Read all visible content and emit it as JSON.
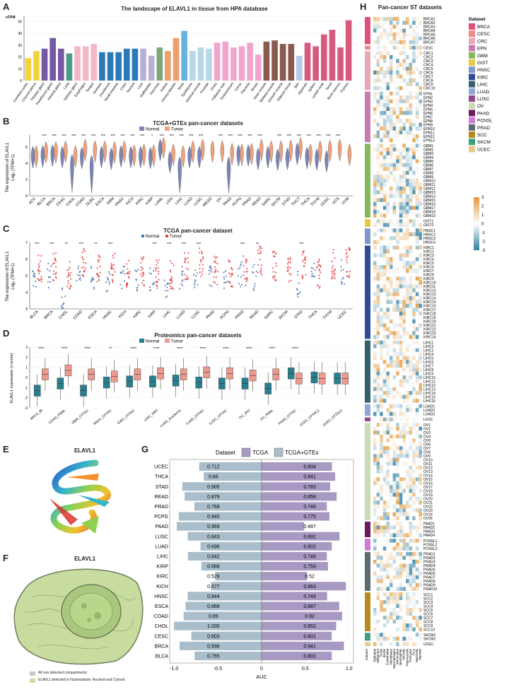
{
  "colors": {
    "normal_blue": "#7b85b8",
    "tumor_orange": "#f0a27c",
    "tcga_normal": "#3f6fb5",
    "tcga_tumor": "#e23b3b",
    "prot_normal": "#2a7f8f",
    "prot_tumor": "#ec9a8e",
    "auc_tcga": "#a899c2",
    "auc_gtex": "#a9bdca",
    "heat_pos": "#e39a3b",
    "heat_neg": "#2f7fa0"
  },
  "panel_labels": {
    "A": "A",
    "B": "B",
    "C": "C",
    "D": "D",
    "E": "E",
    "F": "F",
    "G": "G",
    "H": "H"
  },
  "panelA": {
    "title": "The landscape of ELAVL1 in tissue from HPA database",
    "ylabel": "nTPM",
    "yticks": [
      "0",
      "10",
      "20",
      "30",
      "40",
      "50"
    ]
  },
  "panelB": {
    "title": "TCGA+GTEx pan-cancer datasets",
    "legend_normal": "Normal",
    "legend_tumor": "Tumor",
    "ylabel_1": "The expression of ELAVL1",
    "ylabel_2": "Log₂ (TPM+1)",
    "yticks": [
      "0",
      "2",
      "4",
      "6"
    ]
  },
  "panelC": {
    "title": "TCGA pan-cancer dataset",
    "legend_normal": "Normal",
    "legend_tumor": "Tumor",
    "ylabel_1": "The expression of ELAVL1",
    "ylabel_2": "Log₂ (TPM+1)",
    "yticks": [
      "3",
      "4",
      "5",
      "6",
      "7"
    ]
  },
  "panelD": {
    "title": "Proteomics pan-cancer datasets",
    "legend_normal": "Normal",
    "legend_tumor": "Tumor",
    "ylabel": "ELAVL1 expression (z-score)",
    "yticks": [
      "-3",
      "-2",
      "-1",
      "0",
      "1",
      "2",
      "3"
    ]
  },
  "panelE": {
    "title": "ELAVL1"
  },
  "panelF": {
    "title": "ELAVL1",
    "legend_1": "All non detected compartments",
    "legend_2": "ELAVL1 detected in Nucleoplasm, Nucleoli and Cytosol"
  },
  "panelG": {
    "legend_title": "Dataset",
    "legend_tcga": "TCGA",
    "legend_gtex": "TCGA+GTEx",
    "xlabel": "AUC",
    "xticks": [
      "-1.0",
      "-0.5",
      "0",
      "0.5",
      "1.0"
    ]
  },
  "panelH": {
    "title": "Pan-cancer ST datasets",
    "legend_title": "Dataset",
    "datasets": [
      "BRCA",
      "CESC",
      "CRC",
      "EPN",
      "GBM",
      "GIST",
      "HNSC",
      "KIRC",
      "LIHC",
      "LUAD",
      "LUSC",
      "OV",
      "PAAD",
      "PCNSL",
      "PRAD",
      "SCC",
      "SKCM",
      "UCEC"
    ],
    "dataset_colors": [
      "#e0507a",
      "#f08a8a",
      "#e7a8b5",
      "#c77bb0",
      "#86b95a",
      "#e8c840",
      "#7e98c9",
      "#2e4d96",
      "#35606e",
      "#93a6d9",
      "#8f4a8d",
      "#c9dcb3",
      "#6b1a5b",
      "#cc7bd6",
      "#5c6b72",
      "#b58b1e",
      "#3aa07d",
      "#e8c98a"
    ],
    "scale_ticks": [
      "3",
      "2",
      "1",
      "0",
      "-1",
      "-2",
      "-3"
    ],
    "x_labels": [
      "Dataset",
      "Epithelial",
      "Malignant",
      "Tcells",
      "Bcells",
      "Endothelial",
      "Fibroblasts",
      "Macrophages",
      "Monocytes",
      "Neutrophils",
      "NKcells",
      "Plasmacells",
      "Pericytes",
      "DCs",
      "Mastcells",
      "Myeloid"
    ]
  },
  "chart_data": [
    {
      "id": "A",
      "type": "bar",
      "title": "The landscape of ELAVL1 in tissue from HPA database",
      "ylabel": "nTPM",
      "ylim": [
        0,
        55
      ],
      "categories": [
        "Cerebral cortex",
        "Choroid plexus",
        "Pituitary gland",
        "Parathyroid gland",
        "Adrenal gland",
        "Lung",
        "Salivary gland",
        "Esophagus",
        "Tongue",
        "Stomach",
        "Duodenum",
        "Small intestine",
        "Colon",
        "Rectum",
        "Liver",
        "Gallbladder",
        "Pancreas",
        "Kidney",
        "Urinary bladder",
        "Testis",
        "Epididymis",
        "Seminal vesicle",
        "Prostate",
        "Ovary",
        "Fallopian tube",
        "Endometrium",
        "Cervix",
        "Placenta",
        "Breast",
        "Heart muscle",
        "Skeletal muscle",
        "Smooth muscle",
        "Adipose tissue",
        "Skin",
        "Appendix",
        "Spleen",
        "Lymph node",
        "Tonsil",
        "Bone marrow",
        "Thymus"
      ],
      "values": [
        19,
        25,
        27,
        36,
        27,
        23,
        29,
        29,
        31,
        24,
        24,
        24,
        27,
        27,
        27,
        21,
        28,
        25,
        36,
        42,
        25,
        28,
        27,
        32,
        33,
        28,
        29,
        32,
        22,
        33,
        34,
        31,
        31,
        21,
        32,
        29,
        39,
        43,
        28,
        51
      ],
      "bar_colors": [
        "#f3d33b",
        "#f3d33b",
        "#7658a3",
        "#7658a3",
        "#7658a3",
        "#4f9a8c",
        "#f2b8c8",
        "#f2b8c8",
        "#f2b8c8",
        "#2c79b8",
        "#2c79b8",
        "#2c79b8",
        "#2c79b8",
        "#2c79b8",
        "#b7b0d6",
        "#b7b0d6",
        "#7ca77d",
        "#eca06c",
        "#eca06c",
        "#67b3de",
        "#b6d8e8",
        "#b6d8e8",
        "#b6d8e8",
        "#f1a5cc",
        "#f1a5cc",
        "#f1a5cc",
        "#f1a5cc",
        "#f1a5cc",
        "#f1a5cc",
        "#8b5a4e",
        "#8b5a4e",
        "#8b5a4e",
        "#8b5a4e",
        "#b9c9ea",
        "#d55a7d",
        "#d55a7d",
        "#d55a7d",
        "#d55a7d",
        "#d55a7d",
        "#d55a7d"
      ]
    },
    {
      "id": "B",
      "type": "violin",
      "title": "TCGA+GTEx pan-cancer datasets",
      "ylim": [
        0,
        7.5
      ],
      "categories": [
        "ACC",
        "BLCA",
        "BRCA",
        "CESC",
        "CHOL",
        "COAD",
        "DLBC",
        "ESCA",
        "GBM",
        "HNSC",
        "KICH",
        "KIRC",
        "KIRP",
        "LAML",
        "LGG",
        "LIHC",
        "LUAD",
        "LUSC",
        "MESO",
        "OV",
        "PAAD",
        "PCPG",
        "PRAD",
        "READ",
        "SARC",
        "SKCM",
        "STAD",
        "TGCT",
        "THCA",
        "THYM",
        "UCEC",
        "UCS",
        "UVM"
      ],
      "series": [
        {
          "name": "Normal",
          "values": [
            4.9,
            5.0,
            5.1,
            4.9,
            3.9,
            4.8,
            3.8,
            4.9,
            4.7,
            5.0,
            4.9,
            4.9,
            4.8,
            5.8,
            4.3,
            3.6,
            4.9,
            4.9,
            null,
            null,
            3.6,
            5.1,
            5.1,
            4.7,
            4.9,
            4.6,
            4.7,
            5.3,
            4.8,
            4.6,
            4.4,
            null,
            null
          ]
        },
        {
          "name": "Tumor",
          "values": [
            5.0,
            5.5,
            5.5,
            5.6,
            5.0,
            5.8,
            5.6,
            5.6,
            5.5,
            5.6,
            5.1,
            5.2,
            5.1,
            6.1,
            5.2,
            5.0,
            5.6,
            5.8,
            5.6,
            5.6,
            5.3,
            5.2,
            5.3,
            5.8,
            5.6,
            5.6,
            5.7,
            6.0,
            5.2,
            5.6,
            5.7,
            5.8,
            5.2
          ]
        }
      ],
      "significance": [
        "",
        "***",
        "***",
        "***",
        "***",
        "***",
        "***",
        "***",
        "***",
        "***",
        "***",
        "***",
        "*",
        "***",
        "***",
        "***",
        "***",
        "***",
        "",
        "***",
        "***",
        "***",
        "***",
        "***",
        "",
        "***",
        "***",
        "***",
        "***",
        "***",
        "***",
        "***",
        ""
      ]
    },
    {
      "id": "C",
      "type": "scatter",
      "title": "TCGA pan-cancer dataset",
      "ylim": [
        3,
        7
      ],
      "categories": [
        "BLCA",
        "BRCA",
        "CHOL",
        "COAD",
        "ESCA",
        "HNSC",
        "KICH",
        "KIRC",
        "KIRP",
        "LIHC",
        "LUAD",
        "LUSC",
        "PAAD",
        "PCPG",
        "PRAD",
        "READ",
        "SARC",
        "SKCM",
        "STAD",
        "THCA",
        "THYM",
        "UCEC"
      ],
      "series": [
        {
          "name": "Normal",
          "values": [
            5.0,
            5.0,
            3.7,
            4.8,
            4.9,
            4.7,
            5.0,
            4.9,
            4.9,
            4.0,
            4.9,
            4.9,
            5.0,
            5.0,
            5.1,
            4.9,
            null,
            null,
            4.5,
            5.0,
            null,
            5.2
          ]
        },
        {
          "name": "Tumor",
          "values": [
            5.4,
            5.6,
            5.1,
            5.8,
            5.4,
            5.5,
            5.2,
            5.3,
            5.1,
            5.0,
            5.5,
            5.8,
            5.3,
            5.1,
            5.3,
            5.9,
            5.6,
            5.3,
            5.6,
            5.1,
            5.7,
            5.8
          ]
        }
      ],
      "significance": [
        "***",
        "***",
        "**",
        "***",
        "**",
        "***",
        "",
        "",
        "***",
        "***",
        "***",
        "***",
        "",
        "",
        "***",
        "**",
        "",
        "",
        "***",
        "",
        "",
        ""
      ]
    },
    {
      "id": "D",
      "type": "box",
      "title": "Proteomics pan-cancer datasets",
      "ylim": [
        -3,
        3
      ],
      "categories": [
        "BRCA_BI",
        "COAD_PNNL",
        "GBM_CPTAC",
        "HNSC_CPTAC",
        "KIRC_CPTAC",
        "LIHC_HBV",
        "LUAD_Academia",
        "LUAD_CPTAC",
        "LUSC_CPTAC",
        "OV_JHU",
        "OV_PNNL",
        "PAAD_CPTAC",
        "UCEC_CPTAC1",
        "UCEC_CPTAC2"
      ],
      "series": [
        {
          "name": "Normal",
          "values": [
            -1.3,
            -0.6,
            -1.3,
            -0.5,
            -0.4,
            -0.4,
            -0.3,
            -0.5,
            -0.6,
            -0.6,
            -1.1,
            0.4,
            0.0,
            -0.1
          ]
        },
        {
          "name": "Tumor",
          "values": [
            0.3,
            0.7,
            0.3,
            0.1,
            0.3,
            0.4,
            0.3,
            0.5,
            0.4,
            0.2,
            0.3,
            -0.1,
            -0.1,
            -0.1
          ]
        }
      ],
      "significance": [
        "****",
        "****",
        "****",
        "**",
        "****",
        "****",
        "****",
        "****",
        "****",
        "****",
        "****",
        "****",
        "",
        ""
      ]
    },
    {
      "id": "G",
      "type": "bar",
      "xlabel": "AUC",
      "xlim": [
        -1.05,
        1.05
      ],
      "categories": [
        "UCEC",
        "THCA",
        "STAD",
        "READ",
        "PRAD",
        "PCPG",
        "PAAD",
        "LUSC",
        "LUAD",
        "LIHC",
        "KIRP",
        "KIRC",
        "KICH",
        "HNSC",
        "ESCA",
        "COAD",
        "CHOL",
        "CESC",
        "BRCA",
        "BLCA"
      ],
      "series": [
        {
          "name": "TCGA+GTEx",
          "values": [
            0.712,
            0.66,
            0.905,
            0.879,
            0.768,
            0.945,
            0.969,
            0.843,
            0.698,
            0.842,
            0.688,
            0.529,
            0.577,
            0.844,
            0.868,
            0.89,
            1.0,
            0.803,
            0.936,
            0.765
          ]
        },
        {
          "name": "TCGA",
          "values": [
            0.804,
            0.841,
            0.783,
            0.858,
            0.746,
            0.775,
            0.487,
            0.891,
            0.802,
            0.746,
            0.759,
            0.52,
            0.963,
            0.749,
            0.887,
            0.92,
            0.852,
            0.801,
            0.941,
            0.802
          ]
        }
      ],
      "value_labels_gtex": [
        "0.712",
        "0.66",
        "0.905",
        "0.879",
        "0.768",
        "0.945",
        "0.969",
        "0.843",
        "0.698",
        "0.842",
        "0.688",
        "0.529",
        "0.577",
        "0.844",
        "0.868",
        "0.89",
        "1.000",
        "0.803",
        "0.936",
        "0.765"
      ],
      "value_labels_tcga": [
        "0.804",
        "0.841",
        "0.783",
        "0.858",
        "0.746",
        "0.775",
        "0.487",
        "0.891",
        "0.802",
        "0.746",
        "0.759",
        "0.52",
        "0.963",
        "0.749",
        "0.887",
        "0.92",
        "0.852",
        "0.801",
        "0.941",
        "0.802"
      ]
    },
    {
      "id": "H",
      "type": "heatmap",
      "title": "Pan-cancer ST datasets",
      "scale_range": [
        -3,
        3
      ],
      "row_groups": [
        {
          "dataset": "BRCA",
          "rows": [
            "BRCA1",
            "BRCA2",
            "BRCA3",
            "BRCA4",
            "BRCA5",
            "BRCA6",
            "BRCA7"
          ]
        },
        {
          "dataset": "CESC",
          "rows": [
            "CESC"
          ]
        },
        {
          "dataset": "CRC",
          "rows": [
            "CRC1",
            "CRC2",
            "CRC3",
            "CRC4",
            "CRC5",
            "CRC6",
            "CRC7",
            "CRC8",
            "CRC9",
            "CRC10"
          ]
        },
        {
          "dataset": "EPN",
          "rows": [
            "EPN1",
            "EPN2",
            "EPN3",
            "EPN4",
            "EPN5",
            "EPN6",
            "EPN7",
            "EPN8",
            "EPN9",
            "EPN10",
            "EPN11",
            "EPN12",
            "EPN13"
          ]
        },
        {
          "dataset": "GBM",
          "rows": [
            "GBM1",
            "GBM2",
            "GBM3",
            "GBM4",
            "GBM5",
            "GBM6",
            "GBM7",
            "GBM8",
            "GBM9",
            "GBM10",
            "GBM11",
            "GBM12",
            "GBM13",
            "GBM14",
            "GBM15",
            "GBM16",
            "GBM17",
            "GBM18",
            "GBM19"
          ]
        },
        {
          "dataset": "GIST",
          "rows": [
            "GIST1",
            "GIST2"
          ]
        },
        {
          "dataset": "HNSC",
          "rows": [
            "HNSC1",
            "HNSC2",
            "HNSC3",
            "HNSC4"
          ]
        },
        {
          "dataset": "KIRC",
          "rows": [
            "KIRC1",
            "KIRC2",
            "KIRC3",
            "KIRC4",
            "KIRC5",
            "KIRC6",
            "KIRC7",
            "KIRC8",
            "KIRC9",
            "KIRC10",
            "KIRC11",
            "KIRC12",
            "KIRC13",
            "KIRC14",
            "KIRC15",
            "KIRC16",
            "KIRC17",
            "KIRC18",
            "KIRC19",
            "KIRC20",
            "KIRC21",
            "KIRC22",
            "KIRC23",
            "KIRC24"
          ]
        },
        {
          "dataset": "LIHC",
          "rows": [
            "LIHC1",
            "LIHC2",
            "LIHC3",
            "LIHC4",
            "LIHC5",
            "LIHC6",
            "LIHC7",
            "LIHC8",
            "LIHC9",
            "LIHC10",
            "LIHC11",
            "LIHC12",
            "LIHC13",
            "LIHC14",
            "LIHC15",
            "LIHC16"
          ]
        },
        {
          "dataset": "LUAD",
          "rows": [
            "LUAD1",
            "LUAD2",
            "LUAD3"
          ]
        },
        {
          "dataset": "LUSC",
          "rows": [
            "LUSC"
          ]
        },
        {
          "dataset": "OV",
          "rows": [
            "OV1",
            "OV2",
            "OV3",
            "OV4",
            "OV5",
            "OV6",
            "OV7",
            "OV8",
            "OV9",
            "OV10",
            "OV11",
            "OV12",
            "OV13",
            "OV14",
            "OV15",
            "OV16",
            "OV17",
            "OV18",
            "OV19",
            "OV20",
            "OV21",
            "OV22",
            "OV23",
            "OV24",
            "OV25"
          ]
        },
        {
          "dataset": "PAAD",
          "rows": [
            "PAAD1",
            "PAAD2",
            "PAAD3",
            "PAAD4"
          ]
        },
        {
          "dataset": "PCNSL",
          "rows": [
            "PCNSL1",
            "PCNSL2",
            "PCNSL3"
          ]
        },
        {
          "dataset": "PRAD",
          "rows": [
            "PRAD1",
            "PRAD2",
            "PRAD3",
            "PRAD4",
            "PRAD5",
            "PRAD6",
            "PRAD7",
            "PRAD8",
            "PRAD9",
            "PRAD10"
          ]
        },
        {
          "dataset": "SCC",
          "rows": [
            "SCC1",
            "SCC2",
            "SCC3",
            "SCC4",
            "SCC5",
            "SCC6",
            "SCC7",
            "SCC8",
            "SCC9",
            "SCC10"
          ]
        },
        {
          "dataset": "SKCM",
          "rows": [
            "SKCM1",
            "SKCM2"
          ]
        },
        {
          "dataset": "UCEC",
          "rows": [
            "UCEC"
          ]
        }
      ]
    }
  ]
}
